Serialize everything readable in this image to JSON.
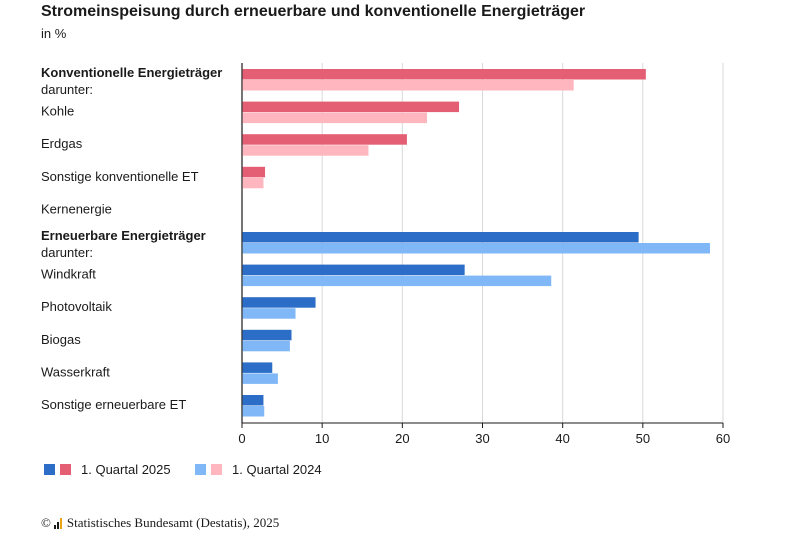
{
  "chart_data": {
    "type": "bar",
    "orientation": "horizontal",
    "title": "Stromeinspeisung durch erneuerbare und konventionelle Energieträger",
    "subtitle": "in %",
    "xlim": [
      0,
      60
    ],
    "xticks": [
      0,
      10,
      20,
      30,
      40,
      50,
      60
    ],
    "grid": true,
    "categories": [
      {
        "label": "Konventionelle Energieträger",
        "sublabel": "darunter:",
        "bold": true,
        "group": "konventionell"
      },
      {
        "label": "Kohle",
        "group": "konventionell"
      },
      {
        "label": "Erdgas",
        "group": "konventionell"
      },
      {
        "label": "Sonstige konventionelle ET",
        "group": "konventionell"
      },
      {
        "label": "Kernenergie",
        "group": "konventionell"
      },
      {
        "label": "Erneuerbare Energieträger",
        "sublabel": "darunter:",
        "bold": true,
        "group": "erneuerbar"
      },
      {
        "label": "Windkraft",
        "group": "erneuerbar"
      },
      {
        "label": "Photovoltaik",
        "group": "erneuerbar"
      },
      {
        "label": "Biogas",
        "group": "erneuerbar"
      },
      {
        "label": "Wasserkraft",
        "group": "erneuerbar"
      },
      {
        "label": "Sonstige erneuerbare ET",
        "group": "erneuerbar"
      }
    ],
    "series": [
      {
        "name": "1. Quartal 2025",
        "values": [
          50.3,
          27.0,
          20.5,
          2.8,
          0,
          49.4,
          27.7,
          9.1,
          6.1,
          3.7,
          2.6
        ]
      },
      {
        "name": "1. Quartal 2024",
        "values": [
          41.3,
          23.0,
          15.7,
          2.6,
          0,
          58.3,
          38.5,
          6.6,
          5.9,
          4.4,
          2.7
        ]
      }
    ],
    "legend_position": "bottom-left"
  },
  "colors": {
    "konventionell_2025": "#e45f73",
    "konventionell_2024": "#ffb6bf",
    "erneuerbar_2025": "#2c6ec7",
    "erneuerbar_2024": "#7fb7f7",
    "grid": "#d9d9d9",
    "axis": "#1a1a1a"
  },
  "legend": [
    {
      "label": "1. Quartal 2025",
      "colors": [
        "#2c6ec7",
        "#e45f73"
      ]
    },
    {
      "label": "1. Quartal 2024",
      "colors": [
        "#7fb7f7",
        "#ffb6bf"
      ]
    }
  ],
  "source": {
    "copyright": "©",
    "text": "Statistisches Bundesamt (Destatis), 2025"
  }
}
